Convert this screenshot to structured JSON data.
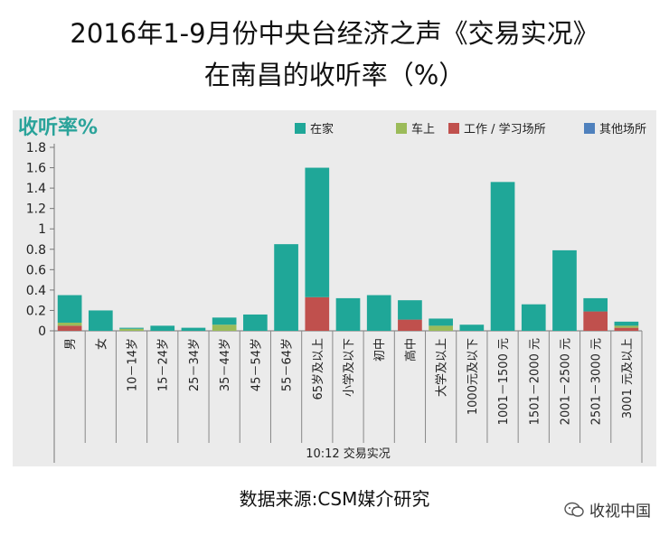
{
  "header": {
    "title_line1": "2016年1-9月份中央台经济之声《交易实况》",
    "title_line2": "在南昌的收听率（%）"
  },
  "footer": {
    "source": "数据来源:CSM媒介研究",
    "brand": "收视中国"
  },
  "chart_data": {
    "type": "bar",
    "stacked": true,
    "ylabel": "收听率%",
    "xlabel": "10:12 交易实况",
    "ylim": [
      0,
      1.8
    ],
    "yticks": [
      "0",
      "0.2",
      "0.4",
      "0.6",
      "0.8",
      "1",
      "1.2",
      "1.4",
      "1.6",
      "1.8"
    ],
    "categories": [
      "男",
      "女",
      "10－14岁",
      "15－24岁",
      "25－34岁",
      "35－44岁",
      "45－54岁",
      "55－64岁",
      "65岁及以上",
      "小学及以下",
      "初中",
      "高中",
      "大学及以上",
      "1000元及以下",
      "1001－1500 元",
      "1501－2000 元",
      "2001－2500 元",
      "2501－3000 元",
      "3001 元及以上"
    ],
    "series": [
      {
        "name": "工作/学习场所",
        "color": "#c0504d",
        "values": [
          0.05,
          0,
          0,
          0,
          0,
          0,
          0,
          0,
          0.33,
          0,
          0,
          0.11,
          0,
          0,
          0,
          0,
          0,
          0.19,
          0.03
        ]
      },
      {
        "name": "车上",
        "color": "#9bbb59",
        "values": [
          0.03,
          0,
          0.02,
          0,
          0,
          0.06,
          0,
          0,
          0,
          0,
          0,
          0,
          0.05,
          0,
          0,
          0,
          0,
          0,
          0.02
        ]
      },
      {
        "name": "在家",
        "color": "#1fa798",
        "values": [
          0.27,
          0.2,
          0.01,
          0.05,
          0.03,
          0.07,
          0.16,
          0.85,
          1.27,
          0.32,
          0.35,
          0.19,
          0.07,
          0.06,
          1.46,
          0.26,
          0.79,
          0.13,
          0.04
        ]
      },
      {
        "name": "其他场所",
        "color": "#4f81bd",
        "values": [
          0,
          0,
          0,
          0,
          0,
          0,
          0,
          0,
          0,
          0,
          0,
          0,
          0,
          0,
          0,
          0,
          0,
          0,
          0
        ]
      }
    ],
    "legend": [
      {
        "name": "在家",
        "color": "#1fa798"
      },
      {
        "name": "车上",
        "color": "#9bbb59"
      },
      {
        "name": "工作 / 学习场所",
        "color": "#c0504d"
      },
      {
        "name": "其他场所",
        "color": "#4f81bd"
      }
    ],
    "legend_position": "top-right",
    "grid": false
  }
}
